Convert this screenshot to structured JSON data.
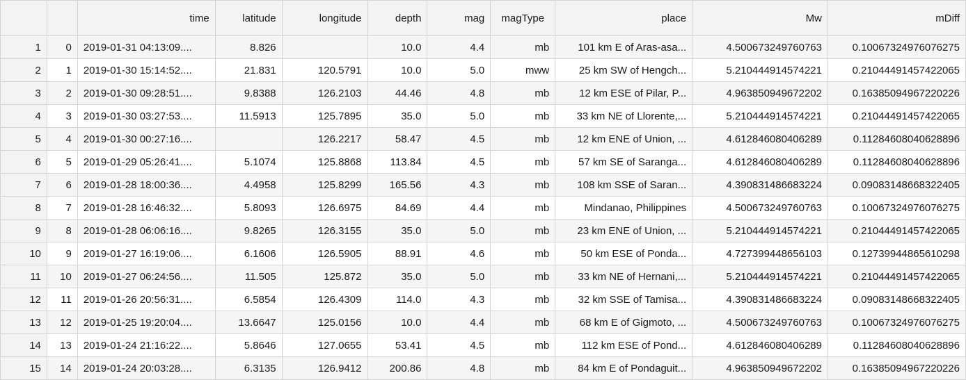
{
  "columns": [
    "",
    "",
    "time",
    "latitude",
    "longitude",
    "depth",
    "mag",
    "magType",
    "place",
    "Mw",
    "mDiff"
  ],
  "rows": [
    {
      "n": "1",
      "idx": "0",
      "time": "2019-01-31 04:13:09....",
      "latitude": "8.826",
      "longitude": "",
      "depth": "10.0",
      "mag": "4.4",
      "magType": "mb",
      "place": "101 km E of Aras-asa...",
      "Mw": "4.500673249760763",
      "mDiff": "0.10067324976076275"
    },
    {
      "n": "2",
      "idx": "1",
      "time": "2019-01-30 15:14:52....",
      "latitude": "21.831",
      "longitude": "120.5791",
      "depth": "10.0",
      "mag": "5.0",
      "magType": "mww",
      "place": "25 km SW of Hengch...",
      "Mw": "5.210444914574221",
      "mDiff": "0.21044491457422065"
    },
    {
      "n": "3",
      "idx": "2",
      "time": "2019-01-30 09:28:51....",
      "latitude": "9.8388",
      "longitude": "126.2103",
      "depth": "44.46",
      "mag": "4.8",
      "magType": "mb",
      "place": "12 km ESE of Pilar, P...",
      "Mw": "4.963850949672202",
      "mDiff": "0.16385094967220226"
    },
    {
      "n": "4",
      "idx": "3",
      "time": "2019-01-30 03:27:53....",
      "latitude": "11.5913",
      "longitude": "125.7895",
      "depth": "35.0",
      "mag": "5.0",
      "magType": "mb",
      "place": "33 km NE of Llorente,...",
      "Mw": "5.210444914574221",
      "mDiff": "0.21044491457422065"
    },
    {
      "n": "5",
      "idx": "4",
      "time": "2019-01-30 00:27:16....",
      "latitude": "",
      "longitude": "126.2217",
      "depth": "58.47",
      "mag": "4.5",
      "magType": "mb",
      "place": "12 km ENE of Union, ...",
      "Mw": "4.612846080406289",
      "mDiff": "0.11284608040628896"
    },
    {
      "n": "6",
      "idx": "5",
      "time": "2019-01-29 05:26:41....",
      "latitude": "5.1074",
      "longitude": "125.8868",
      "depth": "113.84",
      "mag": "4.5",
      "magType": "mb",
      "place": "57 km SE of Saranga...",
      "Mw": "4.612846080406289",
      "mDiff": "0.11284608040628896"
    },
    {
      "n": "7",
      "idx": "6",
      "time": "2019-01-28 18:00:36....",
      "latitude": "4.4958",
      "longitude": "125.8299",
      "depth": "165.56",
      "mag": "4.3",
      "magType": "mb",
      "place": "108 km SSE of Saran...",
      "Mw": "4.390831486683224",
      "mDiff": "0.09083148668322405"
    },
    {
      "n": "8",
      "idx": "7",
      "time": "2019-01-28 16:46:32....",
      "latitude": "5.8093",
      "longitude": "126.6975",
      "depth": "84.69",
      "mag": "4.4",
      "magType": "mb",
      "place": "Mindanao, Philippines",
      "Mw": "4.500673249760763",
      "mDiff": "0.10067324976076275"
    },
    {
      "n": "9",
      "idx": "8",
      "time": "2019-01-28 06:06:16....",
      "latitude": "9.8265",
      "longitude": "126.3155",
      "depth": "35.0",
      "mag": "5.0",
      "magType": "mb",
      "place": "23 km ENE of Union, ...",
      "Mw": "5.210444914574221",
      "mDiff": "0.21044491457422065"
    },
    {
      "n": "10",
      "idx": "9",
      "time": "2019-01-27 16:19:06....",
      "latitude": "6.1606",
      "longitude": "126.5905",
      "depth": "88.91",
      "mag": "4.6",
      "magType": "mb",
      "place": "50 km ESE of Ponda...",
      "Mw": "4.727399448656103",
      "mDiff": "0.12739944865610298"
    },
    {
      "n": "11",
      "idx": "10",
      "time": "2019-01-27 06:24:56....",
      "latitude": "11.505",
      "longitude": "125.872",
      "depth": "35.0",
      "mag": "5.0",
      "magType": "mb",
      "place": "33 km NE of Hernani,...",
      "Mw": "5.210444914574221",
      "mDiff": "0.21044491457422065"
    },
    {
      "n": "12",
      "idx": "11",
      "time": "2019-01-26 20:56:31....",
      "latitude": "6.5854",
      "longitude": "126.4309",
      "depth": "114.0",
      "mag": "4.3",
      "magType": "mb",
      "place": "32 km SSE of Tamisa...",
      "Mw": "4.390831486683224",
      "mDiff": "0.09083148668322405"
    },
    {
      "n": "13",
      "idx": "12",
      "time": "2019-01-25 19:20:04....",
      "latitude": "13.6647",
      "longitude": "125.0156",
      "depth": "10.0",
      "mag": "4.4",
      "magType": "mb",
      "place": "68 km E of Gigmoto, ...",
      "Mw": "4.500673249760763",
      "mDiff": "0.10067324976076275"
    },
    {
      "n": "14",
      "idx": "13",
      "time": "2019-01-24 21:16:22....",
      "latitude": "5.8646",
      "longitude": "127.0655",
      "depth": "53.41",
      "mag": "4.5",
      "magType": "mb",
      "place": "112 km ESE of Pond...",
      "Mw": "4.612846080406289",
      "mDiff": "0.11284608040628896"
    },
    {
      "n": "15",
      "idx": "14",
      "time": "2019-01-24 20:03:28....",
      "latitude": "6.3135",
      "longitude": "126.9412",
      "depth": "200.86",
      "mag": "4.8",
      "magType": "mb",
      "place": "84 km E of Pondaguit...",
      "Mw": "4.963850949672202",
      "mDiff": "0.16385094967220226"
    }
  ]
}
